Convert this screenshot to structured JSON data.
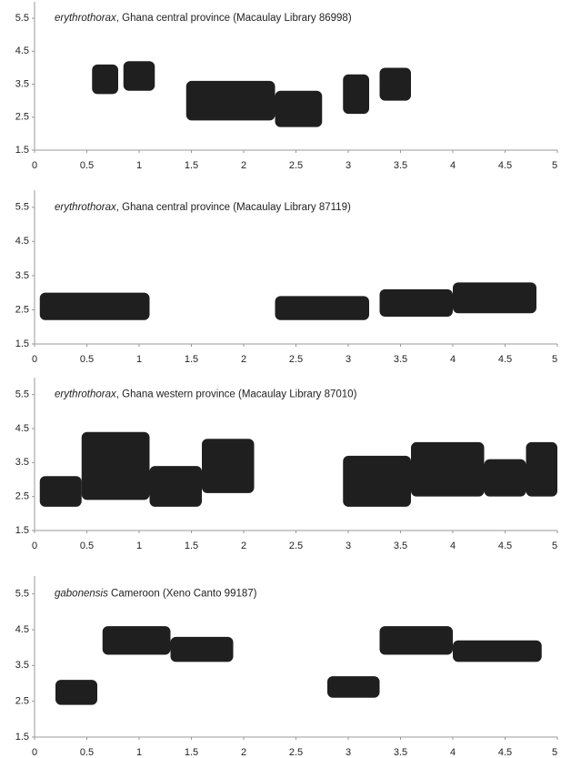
{
  "chart_data": [
    {
      "type": "spectrogram",
      "title_species": "erythrothorax",
      "title_source": ", Ghana central province (Macaulay Library 86998)",
      "xlim": [
        0,
        5
      ],
      "xticks": [
        0,
        0.5,
        1,
        1.5,
        2,
        2.5,
        3,
        3.5,
        4,
        4.5,
        5
      ],
      "ylim": [
        1.5,
        6
      ],
      "yticks": [
        1.5,
        2.5,
        3.5,
        4.5,
        5.5
      ],
      "color": "#000000",
      "segments": [
        {
          "x": [
            0.55,
            0.8
          ],
          "y": [
            3.2,
            4.1
          ]
        },
        {
          "x": [
            0.85,
            1.15
          ],
          "y": [
            3.3,
            4.2
          ]
        },
        {
          "x": [
            1.45,
            2.3
          ],
          "y": [
            2.4,
            3.6
          ]
        },
        {
          "x": [
            2.3,
            2.75
          ],
          "y": [
            2.2,
            3.3
          ]
        },
        {
          "x": [
            2.95,
            3.2
          ],
          "y": [
            2.6,
            3.8
          ]
        },
        {
          "x": [
            3.3,
            3.6
          ],
          "y": [
            3.0,
            4.0
          ]
        }
      ]
    },
    {
      "type": "spectrogram",
      "title_species": "erythrothorax",
      "title_source": ", Ghana central province (Macaulay Library 87119)",
      "xlim": [
        0,
        5
      ],
      "xticks": [
        0,
        0.5,
        1,
        1.5,
        2,
        2.5,
        3,
        3.5,
        4,
        4.5,
        5
      ],
      "ylim": [
        1.5,
        6
      ],
      "yticks": [
        1.5,
        2.5,
        3.5,
        4.5,
        5.5
      ],
      "color": "#000000",
      "segments": [
        {
          "x": [
            0.05,
            1.1
          ],
          "y": [
            2.2,
            3.0
          ]
        },
        {
          "x": [
            2.3,
            3.2
          ],
          "y": [
            2.2,
            2.9
          ]
        },
        {
          "x": [
            3.3,
            4.0
          ],
          "y": [
            2.3,
            3.1
          ]
        },
        {
          "x": [
            4.0,
            4.8
          ],
          "y": [
            2.4,
            3.3
          ]
        }
      ]
    },
    {
      "type": "spectrogram",
      "title_species": "erythrothorax",
      "title_source": ", Ghana western province (Macaulay Library 87010)",
      "xlim": [
        0,
        5
      ],
      "xticks": [
        0,
        0.5,
        1,
        1.5,
        2,
        2.5,
        3,
        3.5,
        4,
        4.5,
        5
      ],
      "ylim": [
        1.5,
        6
      ],
      "yticks": [
        1.5,
        2.5,
        3.5,
        4.5,
        5.5
      ],
      "color": "#000000",
      "segments": [
        {
          "x": [
            0.05,
            0.45
          ],
          "y": [
            2.2,
            3.1
          ]
        },
        {
          "x": [
            0.45,
            1.1
          ],
          "y": [
            2.4,
            4.4
          ]
        },
        {
          "x": [
            1.1,
            1.6
          ],
          "y": [
            2.2,
            3.4
          ]
        },
        {
          "x": [
            1.6,
            2.1
          ],
          "y": [
            2.6,
            4.2
          ]
        },
        {
          "x": [
            2.95,
            3.6
          ],
          "y": [
            2.2,
            3.7
          ]
        },
        {
          "x": [
            3.6,
            4.3
          ],
          "y": [
            2.5,
            4.1
          ]
        },
        {
          "x": [
            4.3,
            4.7
          ],
          "y": [
            2.5,
            3.6
          ]
        },
        {
          "x": [
            4.7,
            5.0
          ],
          "y": [
            2.5,
            4.1
          ]
        }
      ]
    },
    {
      "type": "spectrogram",
      "title_species": "gabonensis",
      "title_source": " Cameroon (Xeno Canto 99187)",
      "xlim": [
        0,
        5
      ],
      "xticks": [
        0,
        0.5,
        1,
        1.5,
        2,
        2.5,
        3,
        3.5,
        4,
        4.5,
        5
      ],
      "ylim": [
        1.5,
        6
      ],
      "yticks": [
        1.5,
        2.5,
        3.5,
        4.5,
        5.5
      ],
      "color": "#000000",
      "segments": [
        {
          "x": [
            0.2,
            0.6
          ],
          "y": [
            2.4,
            3.1
          ]
        },
        {
          "x": [
            0.65,
            1.3
          ],
          "y": [
            3.8,
            4.6
          ]
        },
        {
          "x": [
            1.3,
            1.9
          ],
          "y": [
            3.6,
            4.3
          ]
        },
        {
          "x": [
            2.8,
            3.3
          ],
          "y": [
            2.6,
            3.2
          ]
        },
        {
          "x": [
            3.3,
            4.0
          ],
          "y": [
            3.8,
            4.6
          ]
        },
        {
          "x": [
            4.0,
            4.85
          ],
          "y": [
            3.6,
            4.2
          ]
        }
      ]
    }
  ]
}
